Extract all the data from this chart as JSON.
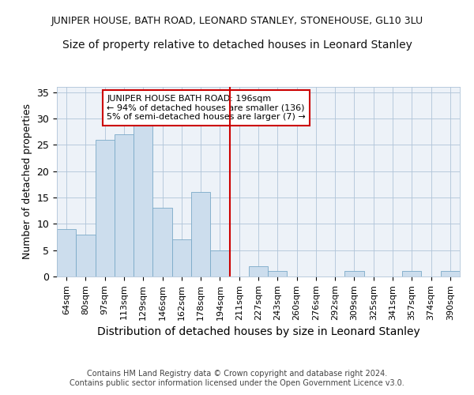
{
  "title": "JUNIPER HOUSE, BATH ROAD, LEONARD STANLEY, STONEHOUSE, GL10 3LU",
  "subtitle": "Size of property relative to detached houses in Leonard Stanley",
  "xlabel": "Distribution of detached houses by size in Leonard Stanley",
  "ylabel": "Number of detached properties",
  "bar_labels": [
    "64sqm",
    "80sqm",
    "97sqm",
    "113sqm",
    "129sqm",
    "146sqm",
    "162sqm",
    "178sqm",
    "194sqm",
    "211sqm",
    "227sqm",
    "243sqm",
    "260sqm",
    "276sqm",
    "292sqm",
    "309sqm",
    "325sqm",
    "341sqm",
    "357sqm",
    "374sqm",
    "390sqm"
  ],
  "bar_values": [
    9,
    8,
    26,
    27,
    29,
    13,
    7,
    16,
    5,
    0,
    2,
    1,
    0,
    0,
    0,
    1,
    0,
    0,
    1,
    0,
    1
  ],
  "bar_color": "#ccdded",
  "bar_edge_color": "#7aaac8",
  "vline_pos": 8.5,
  "vline_color": "#cc0000",
  "annotation_text": "JUNIPER HOUSE BATH ROAD: 196sqm\n← 94% of detached houses are smaller (136)\n5% of semi-detached houses are larger (7) →",
  "ylim": [
    0,
    36
  ],
  "yticks": [
    0,
    5,
    10,
    15,
    20,
    25,
    30,
    35
  ],
  "bg_color": "#edf2f8",
  "footer_text": "Contains HM Land Registry data © Crown copyright and database right 2024.\nContains public sector information licensed under the Open Government Licence v3.0.",
  "title_fontsize": 9,
  "subtitle_fontsize": 10,
  "ylabel_fontsize": 9,
  "xlabel_fontsize": 10,
  "tick_fontsize": 8,
  "annotation_fontsize": 8,
  "footer_fontsize": 7
}
